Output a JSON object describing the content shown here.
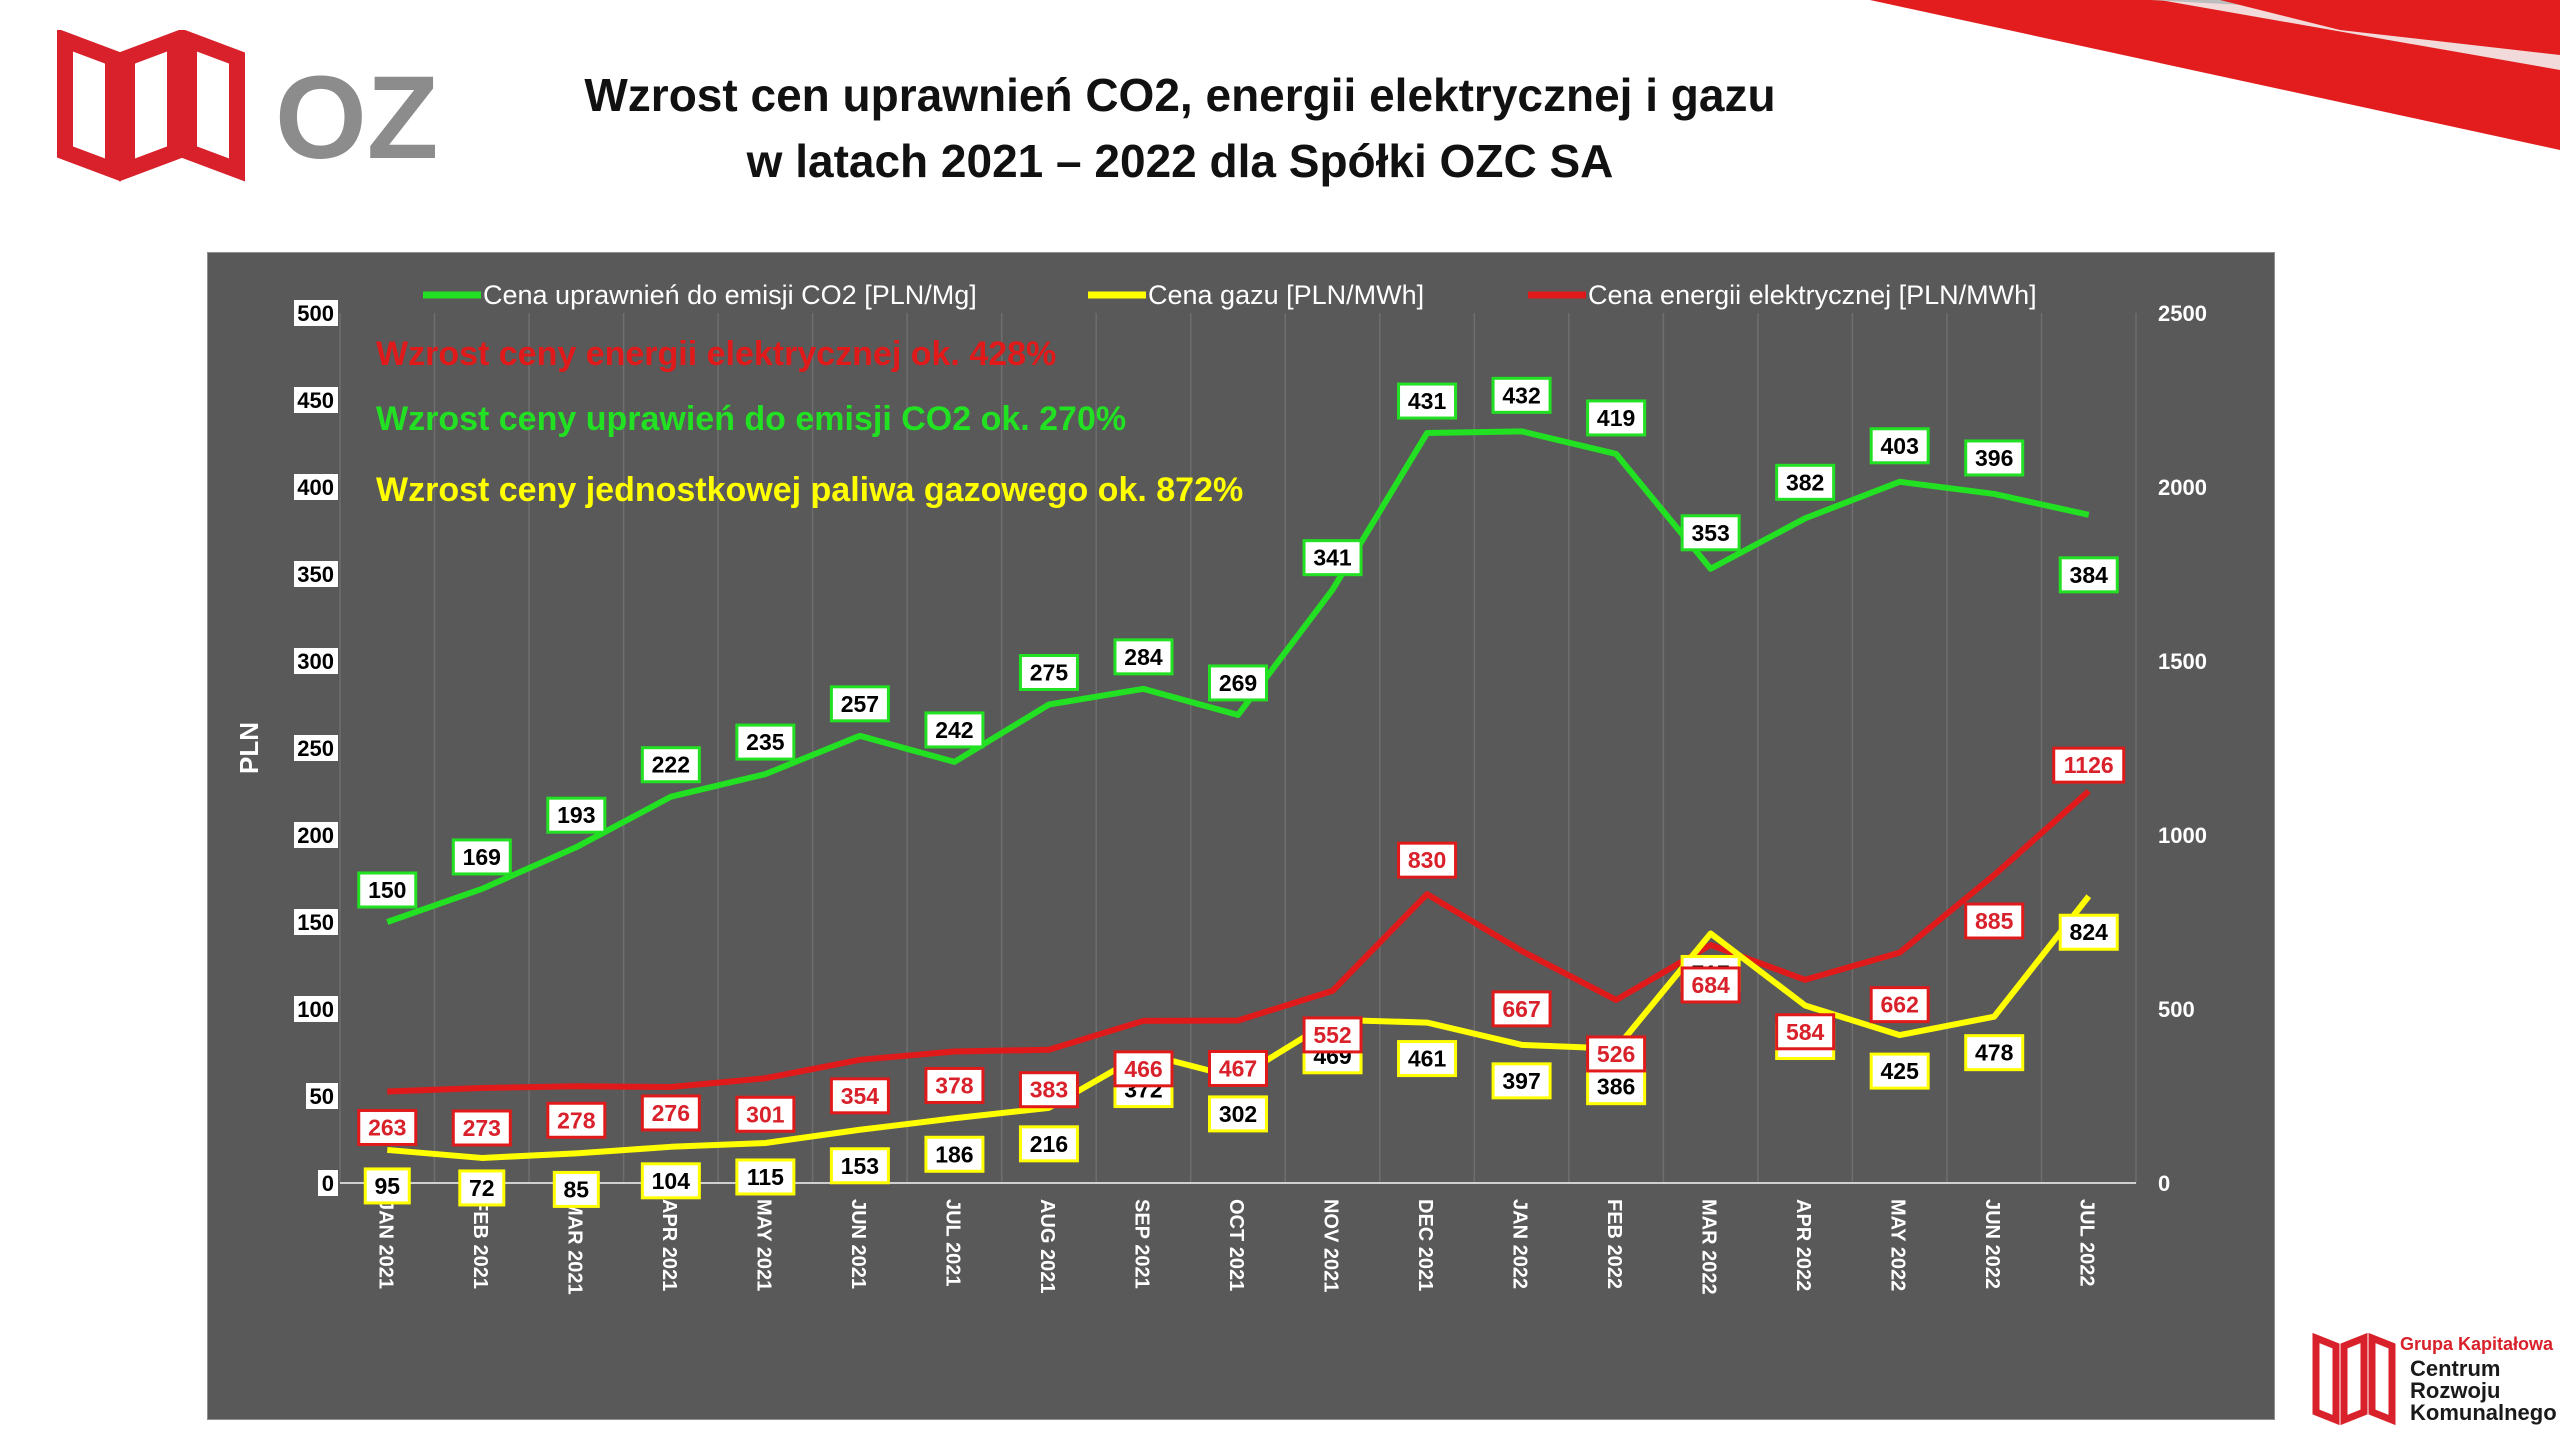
{
  "header": {
    "logo_text": "OZC",
    "title_line1": "Wzrost cen uprawnień CO2, energii elektrycznej i gazu",
    "title_line2": "w latach 2021 – 2022 dla Spółki OZC SA"
  },
  "footer_logo": {
    "group": "Grupa Kapitałowa",
    "line1": "Centrum",
    "line2": "Rozwoju",
    "line3": "Komunalnego"
  },
  "colors": {
    "panel_bg": "#595959",
    "co2": "#22e022",
    "gas": "#ffff00",
    "energy": "#e01a1a",
    "brand_red": "#d8212a",
    "logo_gray": "#8c8c8c"
  },
  "chart_data": {
    "type": "line",
    "categories": [
      "JAN 2021",
      "FEB 2021",
      "MAR 2021",
      "APR 2021",
      "MAY 2021",
      "JUN 2021",
      "JUL 2021",
      "AUG 2021",
      "SEP 2021",
      "OCT 2021",
      "NOV 2021",
      "DEC 2021",
      "JAN 2022",
      "FEB 2022",
      "MAR 2022",
      "APR 2022",
      "MAY 2022",
      "JUN 2022",
      "JUL 2022"
    ],
    "ylabel": "PLN",
    "y_left": {
      "min": 0,
      "max": 500,
      "ticks": [
        0,
        50,
        100,
        150,
        200,
        250,
        300,
        350,
        400,
        450,
        500
      ]
    },
    "y_right": {
      "min": 0,
      "max": 2500,
      "ticks": [
        0,
        500,
        1000,
        1500,
        2000,
        2500
      ]
    },
    "grid": "vertical",
    "legend_position": "top",
    "annotations": [
      {
        "text": "Wzrost ceny energii elektrycznej ok. 428%",
        "color": "#e01a1a"
      },
      {
        "text": "Wzrost ceny uprawień do emisji CO2 ok. 270%",
        "color": "#22e022"
      },
      {
        "text": "Wzrost ceny jednostkowej paliwa gazowego ok. 872%",
        "color": "#ffff00"
      }
    ],
    "series": [
      {
        "name": "Cena uprawnień do emisji CO2 [PLN/Mg]",
        "axis": "left",
        "color": "#22e022",
        "values": [
          150,
          169,
          193,
          222,
          235,
          257,
          242,
          275,
          284,
          269,
          341,
          431,
          432,
          419,
          353,
          382,
          403,
          396,
          384
        ]
      },
      {
        "name": "Cena gazu [PLN/MWh]",
        "axis": "right",
        "color": "#ffff00",
        "values": [
          95,
          72,
          85,
          104,
          115,
          153,
          186,
          216,
          372,
          302,
          469,
          461,
          397,
          386,
          717,
          510,
          425,
          478,
          824
        ]
      },
      {
        "name": "Cena energii elektrycznej [PLN/MWh]",
        "axis": "right",
        "color": "#e01a1a",
        "values": [
          263,
          273,
          278,
          276,
          301,
          354,
          378,
          383,
          466,
          467,
          552,
          830,
          667,
          526,
          684,
          584,
          662,
          885,
          1126
        ]
      }
    ]
  }
}
